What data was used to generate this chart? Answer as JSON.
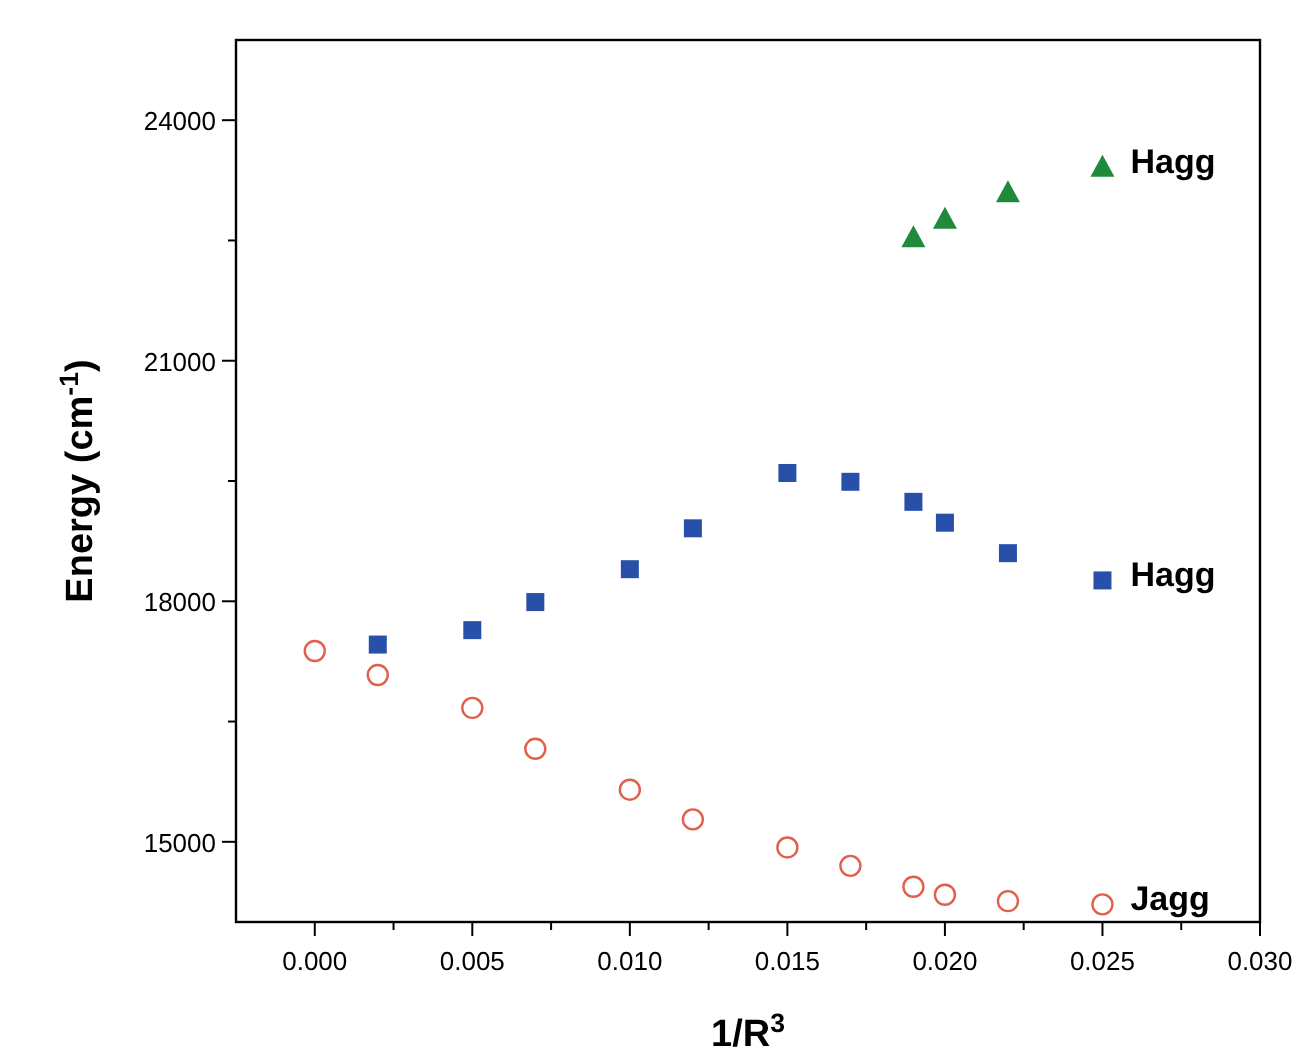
{
  "chart_data": {
    "type": "scatter",
    "xlabel": "1/R$^{3}$",
    "ylabel": "Energy (cm$^{-1}$)",
    "xlim": [
      -0.0025,
      0.03
    ],
    "ylim": [
      14000,
      25000
    ],
    "xticks": [
      {
        "value": 0,
        "label": "0.000"
      },
      {
        "value": 0.0025,
        "label": null
      },
      {
        "value": 0.005,
        "label": "0.005"
      },
      {
        "value": 0.0075,
        "label": null
      },
      {
        "value": 0.01,
        "label": "0.010"
      },
      {
        "value": 0.0125,
        "label": null
      },
      {
        "value": 0.015,
        "label": "0.015"
      },
      {
        "value": 0.0175,
        "label": null
      },
      {
        "value": 0.02,
        "label": "0.020"
      },
      {
        "value": 0.0225,
        "label": null
      },
      {
        "value": 0.025,
        "label": "0.025"
      },
      {
        "value": 0.0275,
        "label": null
      },
      {
        "value": 0.03,
        "label": "0.030"
      }
    ],
    "yticks": [
      15000,
      {
        "value": 16500,
        "label": null
      },
      18000,
      {
        "value": 19500,
        "label": null
      },
      21000,
      {
        "value": 22500,
        "label": null
      },
      24000
    ],
    "grid": false,
    "series": [
      {
        "name": "Hagg",
        "color": "#1f8a3c",
        "marker": "triangle",
        "x": [
          0.019,
          0.02,
          0.022,
          0.025
        ],
        "values": [
          22540,
          22770,
          23100,
          23420
        ]
      },
      {
        "name": "Hagg",
        "color": "#2850a8",
        "marker": "square",
        "x": [
          0.002,
          0.005,
          0.007,
          0.01,
          0.012,
          0.015,
          0.017,
          0.019,
          0.02,
          0.022,
          0.025
        ],
        "values": [
          17460,
          17640,
          17990,
          18400,
          18910,
          19600,
          19490,
          19240,
          18980,
          18600,
          18260
        ]
      },
      {
        "name": "Jagg",
        "color": "#e0604a",
        "marker": "circle",
        "x": [
          0,
          0.002,
          0.005,
          0.007,
          0.01,
          0.012,
          0.015,
          0.017,
          0.019,
          0.02,
          0.022,
          0.025
        ],
        "values": [
          17380,
          17080,
          16670,
          16160,
          15650,
          15280,
          14930,
          14700,
          14440,
          14340,
          14260,
          14220
        ]
      }
    ]
  }
}
